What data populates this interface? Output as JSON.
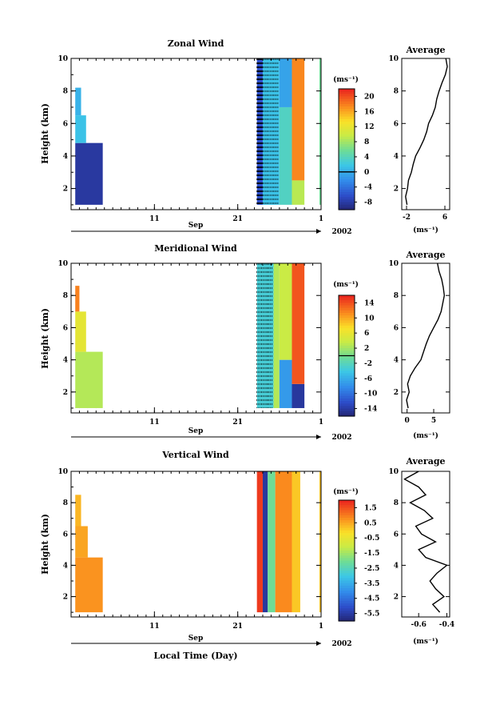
{
  "x_axis": {
    "month_label": "Sep",
    "year_label": "2002",
    "title": "Local Time (Day)",
    "tick_labels": [
      "11",
      "21",
      "1"
    ],
    "tick_days": [
      11,
      21,
      31
    ],
    "range_days": [
      1,
      31
    ]
  },
  "panels": [
    {
      "title": "Zonal Wind",
      "ylabel": "Height (km)",
      "y_ticks": [
        2,
        4,
        6,
        8,
        10
      ],
      "ylim": [
        0.7,
        10
      ],
      "unit": "(ms⁻¹)",
      "colorbar_ticks": [
        "20",
        "16",
        "12",
        "8",
        "4",
        "0",
        "-4",
        "-8"
      ],
      "colorbar_zero_index": 5,
      "avg_title": "Average",
      "avg_xlabel": "(ms⁻¹)",
      "avg_xticks": [
        "-2",
        "6"
      ],
      "avg_xtick_values": [
        -2,
        6
      ],
      "avg_xlim": [
        -3,
        7
      ]
    },
    {
      "title": "Meridional Wind",
      "ylabel": "Height (km)",
      "y_ticks": [
        2,
        4,
        6,
        8,
        10
      ],
      "ylim": [
        0.7,
        10
      ],
      "unit": "(ms⁻¹)",
      "colorbar_ticks": [
        "14",
        "10",
        "6",
        "2",
        "-2",
        "-6",
        "-10",
        "-14"
      ],
      "colorbar_zero_index": 3.5,
      "avg_title": "Average",
      "avg_xlabel": "(ms⁻¹)",
      "avg_xticks": [
        "0",
        "5"
      ],
      "avg_xtick_values": [
        0,
        5
      ],
      "avg_xlim": [
        -1,
        8
      ]
    },
    {
      "title": "Vertical Wind",
      "ylabel": "Height (km)",
      "y_ticks": [
        2,
        4,
        6,
        8,
        10
      ],
      "ylim": [
        0.7,
        10
      ],
      "unit": "(ms⁻¹)",
      "colorbar_ticks": [
        "1.5",
        "0.5",
        "-0.5",
        "-1.5",
        "-2.5",
        "-3.5",
        "-4.5",
        "-5.5"
      ],
      "colorbar_zero_index": null,
      "avg_title": "Average",
      "avg_xlabel": "(ms⁻¹)",
      "avg_xticks": [
        "-0.6",
        "-0.4"
      ],
      "avg_xtick_values": [
        -0.6,
        -0.4
      ],
      "avg_xlim": [
        -0.72,
        -0.38
      ]
    }
  ],
  "chart_data": [
    {
      "type": "heatmap",
      "title": "Zonal Wind",
      "xlabel": "Local Time (Day)",
      "ylabel": "Height (km)",
      "ylim": [
        0.7,
        10
      ],
      "x_range_days": [
        1,
        31
      ],
      "blocks": [
        {
          "x0": 1.5,
          "x1": 4.8,
          "y0": 1.0,
          "y1": 4.8,
          "value": -6
        },
        {
          "x0": 1.5,
          "x1": 2.8,
          "y0": 4.8,
          "y1": 6.5,
          "value": 3
        },
        {
          "x0": 1.5,
          "x1": 2.2,
          "y0": 6.5,
          "y1": 8.2,
          "value": 2
        },
        {
          "x0": 23.3,
          "x1": 24.0,
          "y0": 1.0,
          "y1": 10.0,
          "value": -4
        },
        {
          "x0": 24.0,
          "x1": 26.0,
          "y0": 1.0,
          "y1": 10.0,
          "value": 3
        },
        {
          "x0": 26.0,
          "x1": 27.5,
          "y0": 1.0,
          "y1": 7.0,
          "value": 5
        },
        {
          "x0": 26.0,
          "x1": 27.5,
          "y0": 7.0,
          "y1": 10.0,
          "value": 1
        },
        {
          "x0": 27.5,
          "x1": 29.0,
          "y0": 1.0,
          "y1": 2.5,
          "value": 10
        },
        {
          "x0": 27.5,
          "x1": 29.0,
          "y0": 2.5,
          "y1": 10.0,
          "value": 18
        },
        {
          "x0": 30.8,
          "x1": 31.0,
          "y0": 1.0,
          "y1": 10.0,
          "value": 7
        }
      ],
      "colorbar_range": [
        -8,
        22
      ],
      "average_profile": {
        "height": [
          1.0,
          1.5,
          2.0,
          2.5,
          3.0,
          3.5,
          4.0,
          4.5,
          5.0,
          5.5,
          6.0,
          6.5,
          7.0,
          7.5,
          8.0,
          8.5,
          9.0,
          9.5,
          10.0
        ],
        "value": [
          -1.9,
          -2.2,
          -1.8,
          -1.6,
          -1.0,
          -0.6,
          -0.1,
          0.8,
          1.6,
          2.2,
          2.6,
          3.4,
          4.0,
          4.3,
          4.8,
          5.4,
          6.1,
          6.5,
          6.2
        ]
      }
    },
    {
      "type": "heatmap",
      "title": "Meridional Wind",
      "xlabel": "Local Time (Day)",
      "ylabel": "Height (km)",
      "ylim": [
        0.7,
        10
      ],
      "x_range_days": [
        1,
        31
      ],
      "blocks": [
        {
          "x0": 1.5,
          "x1": 4.8,
          "y0": 1.0,
          "y1": 4.5,
          "value": 3
        },
        {
          "x0": 1.5,
          "x1": 2.8,
          "y0": 4.5,
          "y1": 7.0,
          "value": 6
        },
        {
          "x0": 1.5,
          "x1": 2.0,
          "y0": 7.0,
          "y1": 8.6,
          "value": 12
        },
        {
          "x0": 23.3,
          "x1": 25.3,
          "y0": 1.0,
          "y1": 10.0,
          "value": -3
        },
        {
          "x0": 25.3,
          "x1": 26.0,
          "y0": 1.0,
          "y1": 10.0,
          "value": 3
        },
        {
          "x0": 26.0,
          "x1": 27.5,
          "y0": 1.0,
          "y1": 4.0,
          "value": -7
        },
        {
          "x0": 26.0,
          "x1": 27.5,
          "y0": 4.0,
          "y1": 10.0,
          "value": 4
        },
        {
          "x0": 27.5,
          "x1": 29.0,
          "y0": 1.0,
          "y1": 2.5,
          "value": -14
        },
        {
          "x0": 27.5,
          "x1": 29.0,
          "y0": 2.5,
          "y1": 10.0,
          "value": 14
        }
      ],
      "colorbar_range": [
        -16,
        16
      ],
      "average_profile": {
        "height": [
          1.0,
          1.5,
          2.0,
          2.5,
          3.0,
          3.5,
          4.0,
          4.5,
          5.0,
          5.5,
          6.0,
          6.5,
          7.0,
          7.5,
          8.0,
          8.5,
          9.0,
          9.5,
          10.0
        ],
        "value": [
          0.2,
          -0.1,
          0.4,
          0.1,
          0.6,
          1.5,
          2.6,
          3.1,
          3.6,
          4.2,
          5.0,
          5.8,
          6.4,
          6.7,
          7.0,
          6.8,
          6.5,
          6.0,
          5.7
        ]
      }
    },
    {
      "type": "heatmap",
      "title": "Vertical Wind",
      "xlabel": "Local Time (Day)",
      "ylabel": "Height (km)",
      "ylim": [
        0.7,
        10
      ],
      "x_range_days": [
        1,
        31
      ],
      "blocks": [
        {
          "x0": 1.5,
          "x1": 4.8,
          "y0": 1.0,
          "y1": 4.5,
          "value": 0.8
        },
        {
          "x0": 1.5,
          "x1": 3.0,
          "y0": 4.5,
          "y1": 6.5,
          "value": 0.6
        },
        {
          "x0": 1.5,
          "x1": 2.2,
          "y0": 6.5,
          "y1": 8.5,
          "value": 0.4
        },
        {
          "x0": 23.3,
          "x1": 24.0,
          "y0": 1.0,
          "y1": 10.0,
          "value": 1.8
        },
        {
          "x0": 24.0,
          "x1": 24.6,
          "y0": 1.0,
          "y1": 10.0,
          "value": -5.5
        },
        {
          "x0": 24.6,
          "x1": 25.5,
          "y0": 1.0,
          "y1": 10.0,
          "value": -2.0
        },
        {
          "x0": 25.5,
          "x1": 27.5,
          "y0": 1.0,
          "y1": 10.0,
          "value": 0.9
        },
        {
          "x0": 27.5,
          "x1": 28.5,
          "y0": 1.0,
          "y1": 10.0,
          "value": 0.2
        },
        {
          "x0": 30.8,
          "x1": 31.0,
          "y0": 1.0,
          "y1": 10.0,
          "value": 0.3
        }
      ],
      "colorbar_range": [
        -6,
        2
      ],
      "average_profile": {
        "height": [
          1.0,
          1.5,
          2.0,
          2.5,
          3.0,
          3.5,
          4.0,
          4.5,
          5.0,
          5.5,
          6.0,
          6.5,
          7.0,
          7.5,
          8.0,
          8.5,
          9.0,
          9.5,
          10.0
        ],
        "value": [
          -0.45,
          -0.5,
          -0.42,
          -0.48,
          -0.52,
          -0.47,
          -0.4,
          -0.55,
          -0.6,
          -0.48,
          -0.58,
          -0.62,
          -0.5,
          -0.56,
          -0.66,
          -0.55,
          -0.6,
          -0.7,
          -0.6
        ]
      }
    }
  ]
}
